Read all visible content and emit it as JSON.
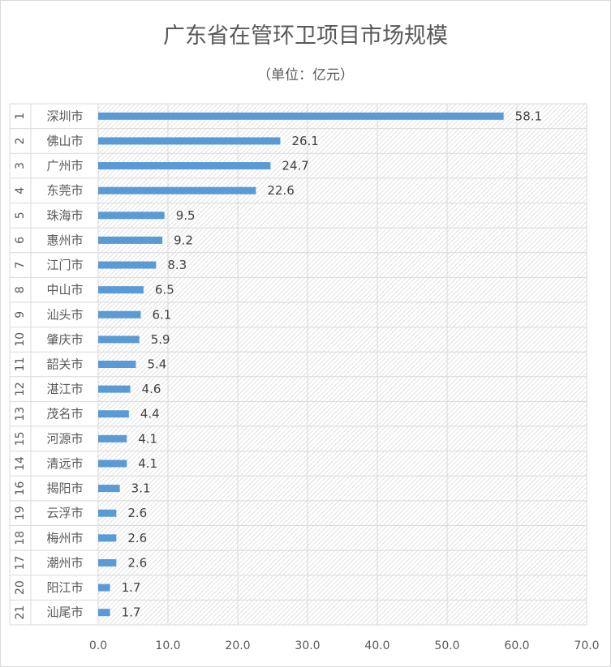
{
  "chart_data": {
    "type": "bar",
    "orientation": "horizontal",
    "title": "广东省在管环卫项目市场规模",
    "subtitle": "（单位：亿元）",
    "xlim": [
      0,
      70
    ],
    "x_ticks": [
      "0.0",
      "10.0",
      "20.0",
      "30.0",
      "40.0",
      "50.0",
      "60.0",
      "70.0"
    ],
    "bar_color": "#5b9bd5",
    "plot_pattern": "diagonal-hatch",
    "categories": [
      {
        "rank": "1",
        "city": "深圳市",
        "value": 58.1,
        "label": "58.1"
      },
      {
        "rank": "2",
        "city": "佛山市",
        "value": 26.1,
        "label": "26.1"
      },
      {
        "rank": "3",
        "city": "广州市",
        "value": 24.7,
        "label": "24.7"
      },
      {
        "rank": "4",
        "city": "东莞市",
        "value": 22.6,
        "label": "22.6"
      },
      {
        "rank": "5",
        "city": "珠海市",
        "value": 9.5,
        "label": "9.5"
      },
      {
        "rank": "6",
        "city": "惠州市",
        "value": 9.2,
        "label": "9.2"
      },
      {
        "rank": "7",
        "city": "江门市",
        "value": 8.3,
        "label": "8.3"
      },
      {
        "rank": "8",
        "city": "中山市",
        "value": 6.5,
        "label": "6.5"
      },
      {
        "rank": "9",
        "city": "汕头市",
        "value": 6.1,
        "label": "6.1"
      },
      {
        "rank": "10",
        "city": "肇庆市",
        "value": 5.9,
        "label": "5.9"
      },
      {
        "rank": "11",
        "city": "韶关市",
        "value": 5.4,
        "label": "5.4"
      },
      {
        "rank": "12",
        "city": "湛江市",
        "value": 4.6,
        "label": "4.6"
      },
      {
        "rank": "13",
        "city": "茂名市",
        "value": 4.4,
        "label": "4.4"
      },
      {
        "rank": "15",
        "city": "河源市",
        "value": 4.1,
        "label": "4.1"
      },
      {
        "rank": "14",
        "city": "清远市",
        "value": 4.1,
        "label": "4.1"
      },
      {
        "rank": "16",
        "city": "揭阳市",
        "value": 3.1,
        "label": "3.1"
      },
      {
        "rank": "19",
        "city": "云浮市",
        "value": 2.6,
        "label": "2.6"
      },
      {
        "rank": "18",
        "city": "梅州市",
        "value": 2.6,
        "label": "2.6"
      },
      {
        "rank": "17",
        "city": "潮州市",
        "value": 2.6,
        "label": "2.6"
      },
      {
        "rank": "20",
        "city": "阳江市",
        "value": 1.7,
        "label": "1.7"
      },
      {
        "rank": "21",
        "city": "汕尾市",
        "value": 1.7,
        "label": "1.7"
      }
    ]
  }
}
